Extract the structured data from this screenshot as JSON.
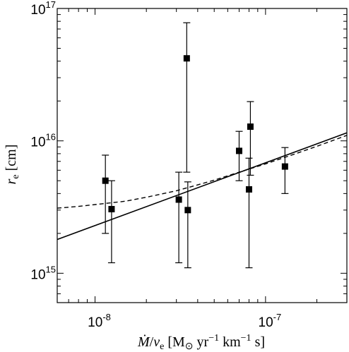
{
  "chart_data": {
    "type": "scatter",
    "xscale": "log",
    "yscale": "log",
    "xlim": [
      6e-09,
      3e-07
    ],
    "ylim": [
      600000000000000.0,
      1e+17
    ],
    "x_ticks": [
      {
        "value": 1e-08,
        "label": "10",
        "exp": "-8"
      },
      {
        "value": 1e-07,
        "label": "10",
        "exp": "-7"
      }
    ],
    "y_ticks": [
      {
        "value": 1000000000000000.0,
        "label": "10",
        "exp": "15"
      },
      {
        "value": 1e+16,
        "label": "10",
        "exp": "16"
      },
      {
        "value": 1e+17,
        "label": "10",
        "exp": "17"
      }
    ],
    "xlabel": {
      "var": "Ṁ",
      "sep": "/",
      "var2": "v",
      "var2_sub": "e",
      "unit_open": " [M",
      "unit_sun": "⊙",
      "unit_yr": " yr",
      "unit_yr_exp": "−1",
      "unit_km": " km",
      "unit_km_exp": "−1",
      "unit_close": " s]"
    },
    "ylabel": {
      "var": "r",
      "sub": "e",
      "unit": " [cm]"
    },
    "grid": false,
    "legend": "none",
    "points": [
      {
        "x": 1.15e-08,
        "y": 5000000000000000.0,
        "yerr_low": 2000000000000000.0,
        "yerr_high": 7800000000000000.0
      },
      {
        "x": 1.25e-08,
        "y": 3050000000000000.0,
        "yerr_low": 1200000000000000.0,
        "yerr_high": 5000000000000000.0
      },
      {
        "x": 3.1e-08,
        "y": 3600000000000000.0,
        "yerr_low": 1200000000000000.0,
        "yerr_high": 5800000000000000.0
      },
      {
        "x": 3.45e-08,
        "y": 4.2e+16,
        "yerr_low": 5800000000000000.0,
        "yerr_high": 7.8e+16
      },
      {
        "x": 3.5e-08,
        "y": 3000000000000000.0,
        "yerr_low": 1100000000000000.0,
        "yerr_high": 4900000000000000.0
      },
      {
        "x": 7e-08,
        "y": 8400000000000000.0,
        "yerr_low": 5000000000000000.0,
        "yerr_high": 1.18e+16
      },
      {
        "x": 8e-08,
        "y": 4300000000000000.0,
        "yerr_low": 1100000000000000.0,
        "yerr_high": 7400000000000000.0
      },
      {
        "x": 8.15e-08,
        "y": 1.28e+16,
        "yerr_low": 5500000000000000.0,
        "yerr_high": 1.98e+16
      },
      {
        "x": 1.3e-07,
        "y": 6400000000000000.0,
        "yerr_low": 4000000000000000.0,
        "yerr_high": 8900000000000000.0
      }
    ],
    "solid_line": [
      {
        "x": 6e-09,
        "y": 1800000000000000.0
      },
      {
        "x": 3e-07,
        "y": 1.15e+16
      }
    ],
    "dashed_curve": [
      {
        "x": 6e-09,
        "y": 3100000000000000.0
      },
      {
        "x": 8e-09,
        "y": 3200000000000000.0
      },
      {
        "x": 1e-08,
        "y": 3300000000000000.0
      },
      {
        "x": 1.5e-08,
        "y": 3500000000000000.0
      },
      {
        "x": 2e-08,
        "y": 3750000000000000.0
      },
      {
        "x": 3e-08,
        "y": 4200000000000000.0
      },
      {
        "x": 4e-08,
        "y": 4650000000000000.0
      },
      {
        "x": 5e-08,
        "y": 5050000000000000.0
      },
      {
        "x": 7e-08,
        "y": 5800000000000000.0
      },
      {
        "x": 1e-07,
        "y": 6700000000000000.0
      },
      {
        "x": 1.5e-07,
        "y": 8000000000000000.0
      },
      {
        "x": 2e-07,
        "y": 9100000000000000.0
      },
      {
        "x": 3e-07,
        "y": 1.1e+16
      }
    ]
  }
}
